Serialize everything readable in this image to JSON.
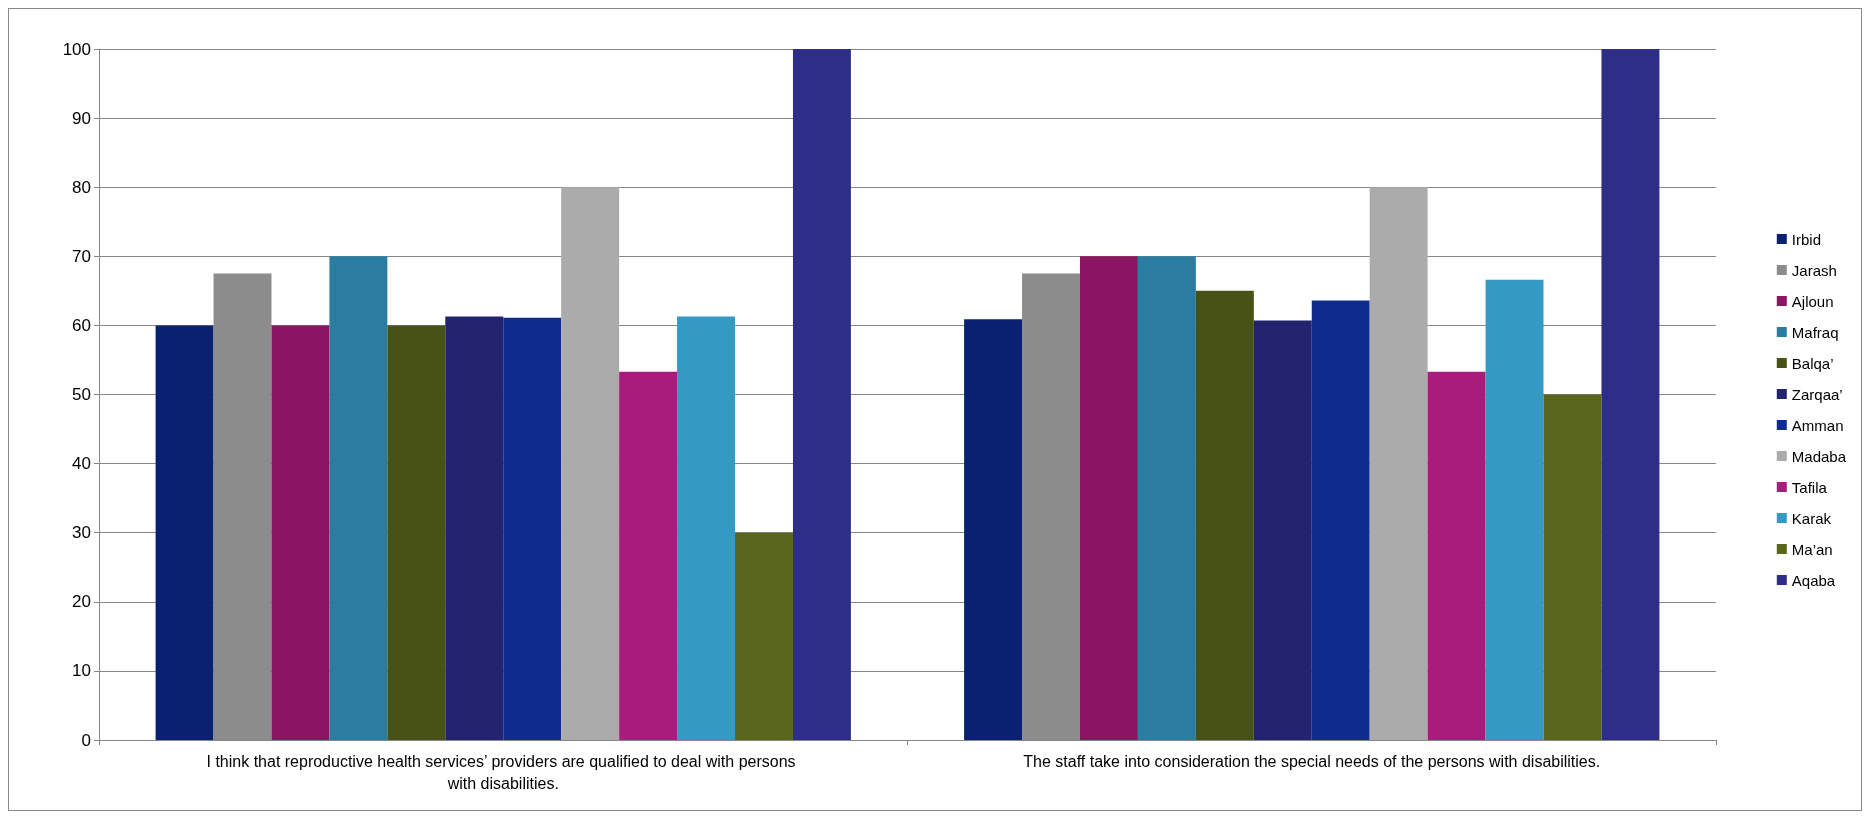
{
  "chart_data": {
    "type": "bar",
    "categories": [
      "I think that reproductive health services’ providers are qualified to deal with persons with disabilities.",
      "The staff take into consideration the special needs of the persons with disabilities."
    ],
    "series": [
      {
        "name": "Irbid",
        "color": "#0a2172",
        "values": [
          60,
          60.9
        ]
      },
      {
        "name": "Jarash",
        "color": "#8c8c8c",
        "values": [
          67.5,
          67.5
        ]
      },
      {
        "name": "Ajloun",
        "color": "#8a1562",
        "values": [
          60,
          70
        ]
      },
      {
        "name": "Mafraq",
        "color": "#2a7da0",
        "values": [
          70,
          70
        ]
      },
      {
        "name": "Balqa’",
        "color": "#485216",
        "values": [
          60,
          65
        ]
      },
      {
        "name": "Zarqaa’",
        "color": "#242370",
        "values": [
          61.3,
          60.7
        ]
      },
      {
        "name": "Amman",
        "color": "#0f2b8e",
        "values": [
          61.1,
          63.6
        ]
      },
      {
        "name": "Madaba",
        "color": "#ababab",
        "values": [
          80,
          80
        ]
      },
      {
        "name": "Tafila",
        "color": "#aa1c7c",
        "values": [
          53.3,
          53.3
        ]
      },
      {
        "name": "Karak",
        "color": "#349ac3",
        "values": [
          61.3,
          66.6
        ]
      },
      {
        "name": "Ma’an",
        "color": "#59661c",
        "values": [
          30,
          50
        ]
      },
      {
        "name": "Aqaba",
        "color": "#2e2d88",
        "values": [
          100,
          100
        ]
      }
    ],
    "ylim": [
      0,
      100
    ],
    "yticks": [
      0,
      10,
      20,
      30,
      40,
      50,
      60,
      70,
      80,
      90,
      100
    ],
    "grid": "y",
    "legend": "right"
  }
}
